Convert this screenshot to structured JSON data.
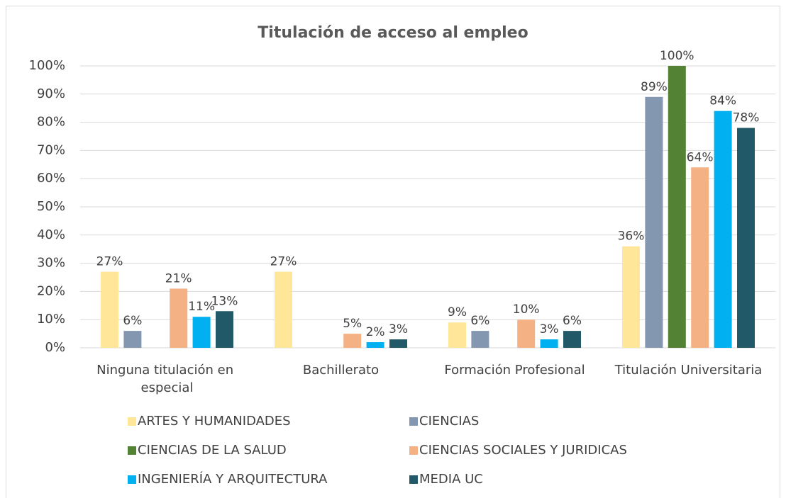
{
  "chart_data": {
    "type": "bar",
    "title": "Titulación de acceso al empleo",
    "categories": [
      "Ninguna titulación en especial",
      "Bachillerato",
      "Formación Profesional",
      "Titulación Universitaria"
    ],
    "ylim": [
      0,
      100
    ],
    "yticks": [
      {
        "value": 0,
        "label": "0%"
      },
      {
        "value": 10,
        "label": "10%"
      },
      {
        "value": 20,
        "label": "20%"
      },
      {
        "value": 30,
        "label": "30%"
      },
      {
        "value": 40,
        "label": "40%"
      },
      {
        "value": 50,
        "label": "50%"
      },
      {
        "value": 60,
        "label": "60%"
      },
      {
        "value": 70,
        "label": "70%"
      },
      {
        "value": 80,
        "label": "80%"
      },
      {
        "value": 90,
        "label": "90%"
      },
      {
        "value": 100,
        "label": "100%"
      }
    ],
    "grid": true,
    "legend": "bottom",
    "series": [
      {
        "name": "ARTES Y HUMANIDADES",
        "color": "#ffe699",
        "values": [
          27,
          27,
          9,
          36
        ],
        "value_labels": [
          "27%",
          "27%",
          "9%",
          "36%"
        ]
      },
      {
        "name": "CIENCIAS",
        "color": "#8497b0",
        "values": [
          6,
          null,
          6,
          89
        ],
        "value_labels": [
          "6%",
          null,
          "6%",
          "89%"
        ]
      },
      {
        "name": "CIENCIAS DE LA SALUD",
        "color": "#548235",
        "values": [
          null,
          null,
          null,
          100
        ],
        "value_labels": [
          null,
          null,
          null,
          "100%"
        ]
      },
      {
        "name": "CIENCIAS SOCIALES Y JURIDICAS",
        "color": "#f4b183",
        "values": [
          21,
          5,
          10,
          64
        ],
        "value_labels": [
          "21%",
          "5%",
          "10%",
          "64%"
        ]
      },
      {
        "name": "INGENIERÍA Y ARQUITECTURA",
        "color": "#00b0f0",
        "values": [
          11,
          2,
          3,
          84
        ],
        "value_labels": [
          "11%",
          "2%",
          "3%",
          "84%"
        ]
      },
      {
        "name": "MEDIA UC",
        "color": "#215968",
        "values": [
          13,
          3,
          6,
          78
        ],
        "value_labels": [
          "13%",
          "3%",
          "6%",
          "78%"
        ]
      }
    ]
  }
}
